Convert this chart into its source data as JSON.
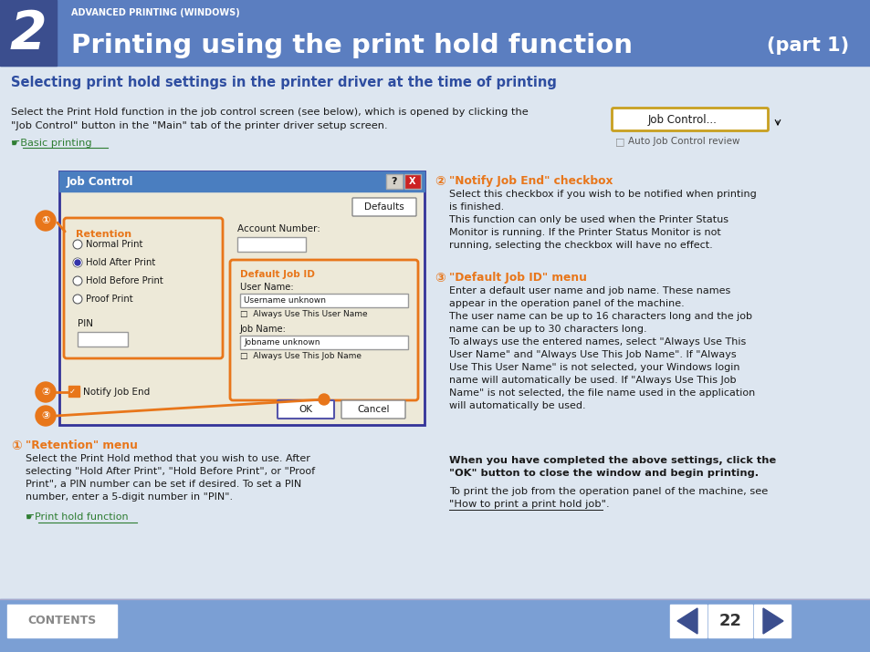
{
  "bg_color": "#dde6f0",
  "header_bg": "#5b7ec0",
  "header_dark": "#3b4e8e",
  "header_title": "Printing using the print hold function",
  "header_subtitle": "ADVANCED PRINTING (WINDOWS)",
  "header_part": "(part 1)",
  "header_number": "2",
  "footer_bg": "#7b9fd4",
  "footer_text": "CONTENTS",
  "footer_page": "22",
  "section_title": "Selecting print hold settings in the printer driver at the time of printing",
  "body_bg": "#dde6f0",
  "orange": "#e8761a",
  "dark_blue": "#2e4da0",
  "green_link": "#2e7d32",
  "text_color": "#1a1a1a",
  "dialog_bg": "#ede9d8",
  "dialog_header_bg": "#4a7ec0",
  "dialog_title": "Job Control",
  "btn_border": "#c8a020",
  "body_intro": "Select the Print Hold function in the job control screen (see below), which is opened by clicking the\n\"Job Control\" button in the \"Main\" tab of the printer driver setup screen.",
  "link_basic": "☛Basic printing",
  "link_print_hold": "☛Print hold function",
  "job_ctrl_btn": "Job Control...",
  "auto_job": "Auto Job Control review",
  "ret_label": "Retention",
  "radio_items": [
    "Normal Print",
    "Hold After Print",
    "Hold Before Print",
    "Proof Print"
  ],
  "radio_selected": 1,
  "pin_label": "PIN",
  "acct_label": "Account Number:",
  "jid_label": "Default Job ID",
  "uname_label": "User Name:",
  "uname_val": "Username unknown",
  "always_uname": "Always Use This User Name",
  "jname_label": "Job Name:",
  "jname_val": "Jobname unknown",
  "always_jname": "Always Use This Job Name",
  "notify_label": "☑ Notify Job End",
  "defaults_btn": "Defaults",
  "ok_btn": "OK",
  "cancel_btn": "Cancel",
  "ann1_title": "\"Retention\" menu",
  "ann1_text": "Select the Print Hold method that you wish to use. After\nselecting \"Hold After Print\", \"Hold Before Print\", or \"Proof\nPrint\", a PIN number can be set if desired. To set a PIN\nnumber, enter a 5-digit number in \"PIN\".",
  "ann2_title": "\"Notify Job End\" checkbox",
  "ann2_text": "Select this checkbox if you wish to be notified when printing\nis finished.\nThis function can only be used when the Printer Status\nMonitor is running. If the Printer Status Monitor is not\nrunning, selecting the checkbox will have no effect.",
  "ann3_title": "\"Default Job ID\" menu",
  "ann3_text": "Enter a default user name and job name. These names\nappear in the operation panel of the machine.\nThe user name can be up to 16 characters long and the job\nname can be up to 30 characters long.\nTo always use the entered names, select \"Always Use This\nUser Name\" and \"Always Use This Job Name\". If \"Always\nUse This User Name\" is not selected, your Windows login\nname will automatically be used. If \"Always Use This Job\nName\" is not selected, the file name used in the application\nwill automatically be used.",
  "bold_note1": "When you have completed the above settings, click the\n\"OK\" button to close the window and begin printing.",
  "note2_line1": "To print the job from the operation panel of the machine, see",
  "note2_link": "\"How to print a print hold job\"",
  "note2_end": "."
}
